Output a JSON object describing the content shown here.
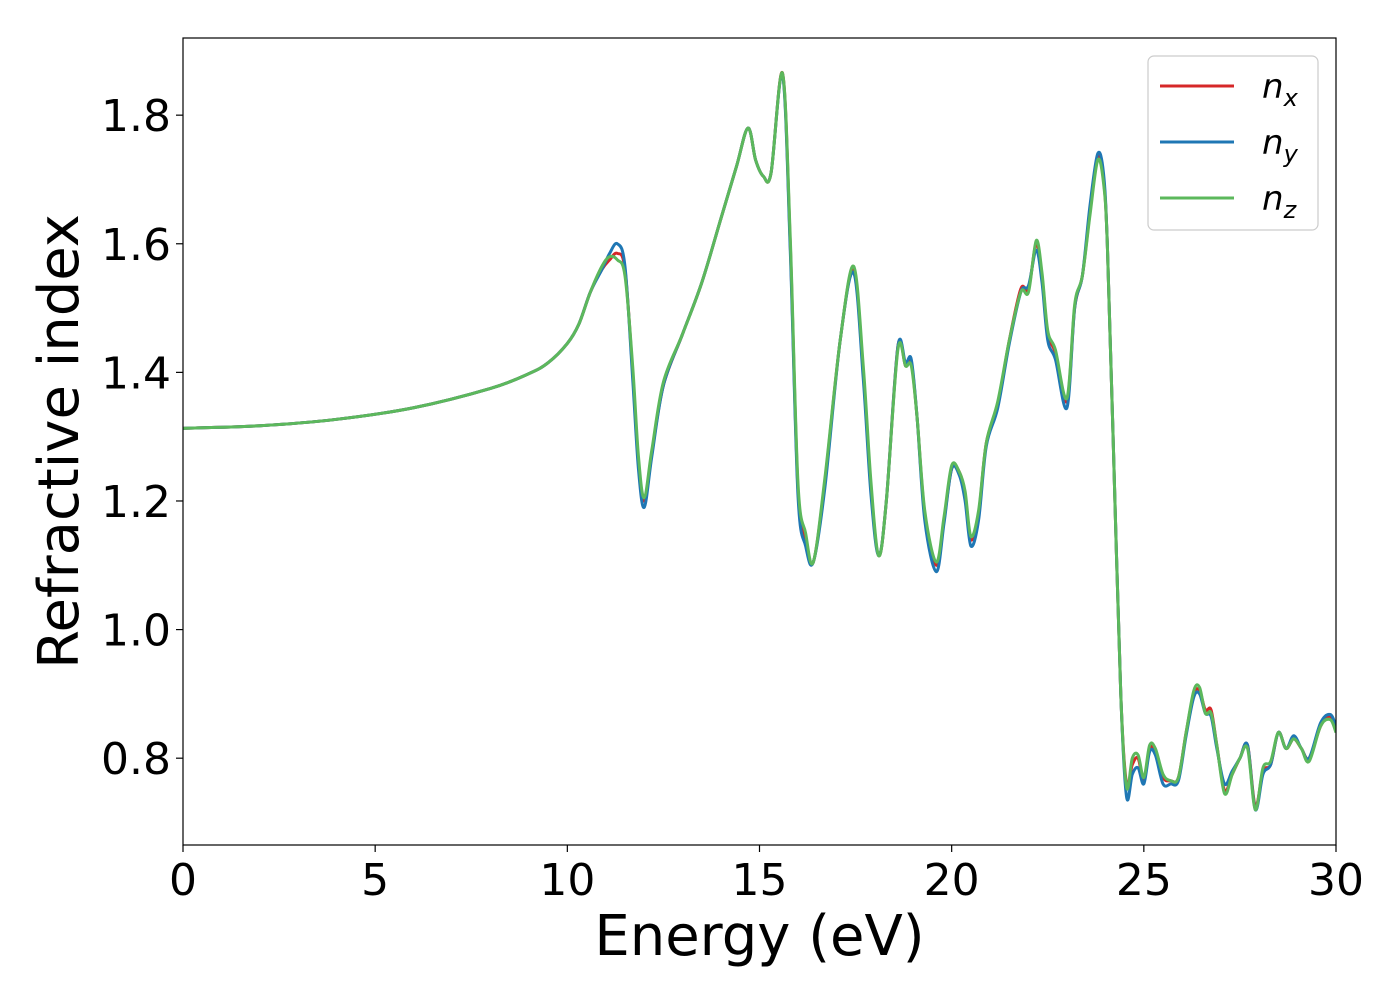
{
  "chart_data": {
    "type": "line",
    "title": "",
    "xlabel": "Energy (eV)",
    "ylabel": "Refractive index",
    "xlim": [
      0,
      30
    ],
    "ylim": [
      0.665,
      1.92
    ],
    "xticks": [
      0,
      5,
      10,
      15,
      20,
      25,
      30
    ],
    "yticks": [
      0.8,
      1.0,
      1.2,
      1.4,
      1.6,
      1.8
    ],
    "xtick_labels": [
      "0",
      "5",
      "10",
      "15",
      "20",
      "25",
      "30"
    ],
    "ytick_labels": [
      "0.8",
      "1.0",
      "1.2",
      "1.4",
      "1.6",
      "1.8"
    ],
    "grid": false,
    "legend_position": "top-right",
    "series": [
      {
        "name": "n",
        "subscript": "x",
        "color": "#d62728",
        "x": [
          0,
          2,
          4,
          6,
          8,
          9,
          9.5,
          10,
          10.3,
          10.6,
          10.9,
          11.1,
          11.3,
          11.5,
          11.7,
          11.85,
          12.0,
          12.2,
          12.5,
          13.0,
          13.5,
          14.0,
          14.4,
          14.7,
          14.9,
          15.1,
          15.3,
          15.6,
          15.8,
          16.0,
          16.2,
          16.4,
          16.7,
          17.1,
          17.45,
          17.7,
          17.9,
          18.1,
          18.3,
          18.6,
          18.8,
          18.95,
          19.1,
          19.3,
          19.6,
          19.8,
          20.0,
          20.2,
          20.35,
          20.5,
          20.7,
          20.9,
          21.2,
          21.5,
          21.8,
          22.0,
          22.2,
          22.35,
          22.5,
          22.7,
          23.0,
          23.2,
          23.4,
          23.6,
          23.8,
          23.95,
          24.05,
          24.2,
          24.4,
          24.55,
          24.7,
          24.85,
          25.0,
          25.15,
          25.3,
          25.5,
          25.7,
          25.9,
          26.1,
          26.3,
          26.45,
          26.6,
          26.75,
          26.9,
          27.1,
          27.3,
          27.5,
          27.7,
          27.9,
          28.1,
          28.3,
          28.5,
          28.7,
          28.9,
          29.1,
          29.3,
          29.6,
          29.85,
          30.0
        ],
        "y": [
          1.313,
          1.317,
          1.327,
          1.345,
          1.375,
          1.398,
          1.415,
          1.445,
          1.475,
          1.525,
          1.56,
          1.575,
          1.585,
          1.56,
          1.4,
          1.26,
          1.2,
          1.275,
          1.38,
          1.46,
          1.54,
          1.64,
          1.72,
          1.78,
          1.73,
          1.705,
          1.71,
          1.865,
          1.6,
          1.22,
          1.14,
          1.105,
          1.23,
          1.45,
          1.56,
          1.4,
          1.22,
          1.115,
          1.2,
          1.44,
          1.41,
          1.415,
          1.33,
          1.18,
          1.1,
          1.17,
          1.25,
          1.245,
          1.21,
          1.14,
          1.18,
          1.29,
          1.35,
          1.45,
          1.53,
          1.53,
          1.6,
          1.55,
          1.46,
          1.43,
          1.355,
          1.5,
          1.55,
          1.65,
          1.735,
          1.7,
          1.6,
          1.3,
          0.9,
          0.76,
          0.79,
          0.8,
          0.765,
          0.815,
          0.81,
          0.77,
          0.765,
          0.77,
          0.84,
          0.9,
          0.905,
          0.875,
          0.875,
          0.82,
          0.75,
          0.775,
          0.8,
          0.82,
          0.725,
          0.78,
          0.79,
          0.84,
          0.815,
          0.83,
          0.815,
          0.8,
          0.85,
          0.865,
          0.845
        ]
      },
      {
        "name": "n",
        "subscript": "y",
        "color": "#1f77b4",
        "x": [
          0,
          2,
          4,
          6,
          8,
          9,
          9.5,
          10,
          10.3,
          10.6,
          10.9,
          11.1,
          11.3,
          11.5,
          11.7,
          11.85,
          12.0,
          12.2,
          12.5,
          13.0,
          13.5,
          14.0,
          14.4,
          14.7,
          14.9,
          15.1,
          15.3,
          15.6,
          15.8,
          16.0,
          16.2,
          16.4,
          16.7,
          17.1,
          17.45,
          17.7,
          17.9,
          18.1,
          18.3,
          18.6,
          18.8,
          18.95,
          19.1,
          19.3,
          19.6,
          19.8,
          20.0,
          20.2,
          20.35,
          20.5,
          20.7,
          20.9,
          21.2,
          21.5,
          21.8,
          22.0,
          22.2,
          22.35,
          22.5,
          22.7,
          23.0,
          23.2,
          23.4,
          23.6,
          23.8,
          23.95,
          24.05,
          24.2,
          24.4,
          24.55,
          24.7,
          24.85,
          25.0,
          25.15,
          25.3,
          25.5,
          25.7,
          25.9,
          26.1,
          26.3,
          26.45,
          26.6,
          26.75,
          26.9,
          27.1,
          27.3,
          27.5,
          27.7,
          27.9,
          28.1,
          28.3,
          28.5,
          28.7,
          28.9,
          29.1,
          29.3,
          29.6,
          29.85,
          30.0
        ],
        "y": [
          1.313,
          1.317,
          1.327,
          1.345,
          1.375,
          1.398,
          1.415,
          1.445,
          1.475,
          1.525,
          1.56,
          1.585,
          1.6,
          1.565,
          1.39,
          1.25,
          1.19,
          1.27,
          1.38,
          1.46,
          1.54,
          1.64,
          1.72,
          1.78,
          1.73,
          1.705,
          1.71,
          1.862,
          1.59,
          1.21,
          1.13,
          1.105,
          1.22,
          1.45,
          1.555,
          1.39,
          1.21,
          1.115,
          1.2,
          1.44,
          1.415,
          1.42,
          1.33,
          1.17,
          1.09,
          1.165,
          1.25,
          1.24,
          1.2,
          1.13,
          1.17,
          1.285,
          1.345,
          1.445,
          1.525,
          1.535,
          1.59,
          1.54,
          1.45,
          1.42,
          1.345,
          1.5,
          1.55,
          1.66,
          1.74,
          1.71,
          1.6,
          1.3,
          0.9,
          0.74,
          0.775,
          0.785,
          0.76,
          0.81,
          0.805,
          0.76,
          0.76,
          0.765,
          0.835,
          0.895,
          0.9,
          0.87,
          0.865,
          0.815,
          0.76,
          0.78,
          0.8,
          0.82,
          0.72,
          0.775,
          0.79,
          0.84,
          0.815,
          0.835,
          0.815,
          0.8,
          0.855,
          0.868,
          0.85
        ]
      },
      {
        "name": "n",
        "subscript": "z",
        "color": "#5cb85c",
        "x": [
          0,
          2,
          4,
          6,
          8,
          9,
          9.5,
          10,
          10.3,
          10.6,
          10.9,
          11.1,
          11.3,
          11.5,
          11.7,
          11.85,
          12.0,
          12.2,
          12.5,
          13.0,
          13.5,
          14.0,
          14.4,
          14.7,
          14.9,
          15.1,
          15.3,
          15.6,
          15.8,
          16.0,
          16.2,
          16.4,
          16.7,
          17.1,
          17.45,
          17.7,
          17.9,
          18.1,
          18.3,
          18.6,
          18.8,
          18.95,
          19.1,
          19.3,
          19.6,
          19.8,
          20.0,
          20.2,
          20.35,
          20.5,
          20.7,
          20.9,
          21.2,
          21.5,
          21.8,
          22.0,
          22.2,
          22.35,
          22.5,
          22.7,
          23.0,
          23.2,
          23.4,
          23.6,
          23.8,
          23.95,
          24.05,
          24.2,
          24.4,
          24.55,
          24.7,
          24.85,
          25.0,
          25.15,
          25.3,
          25.5,
          25.7,
          25.9,
          26.1,
          26.3,
          26.45,
          26.6,
          26.75,
          26.9,
          27.1,
          27.3,
          27.5,
          27.7,
          27.9,
          28.1,
          28.3,
          28.5,
          28.7,
          28.9,
          29.1,
          29.3,
          29.6,
          29.85,
          30.0
        ],
        "y": [
          1.313,
          1.317,
          1.327,
          1.345,
          1.375,
          1.398,
          1.415,
          1.445,
          1.475,
          1.525,
          1.565,
          1.58,
          1.575,
          1.55,
          1.41,
          1.27,
          1.205,
          1.28,
          1.385,
          1.46,
          1.54,
          1.64,
          1.72,
          1.78,
          1.73,
          1.705,
          1.71,
          1.865,
          1.61,
          1.23,
          1.15,
          1.105,
          1.235,
          1.45,
          1.565,
          1.41,
          1.23,
          1.115,
          1.2,
          1.435,
          1.41,
          1.41,
          1.33,
          1.185,
          1.105,
          1.175,
          1.255,
          1.245,
          1.215,
          1.145,
          1.185,
          1.29,
          1.355,
          1.45,
          1.525,
          1.525,
          1.605,
          1.555,
          1.465,
          1.435,
          1.36,
          1.505,
          1.55,
          1.645,
          1.73,
          1.695,
          1.6,
          1.3,
          0.9,
          0.755,
          0.8,
          0.805,
          0.77,
          0.82,
          0.815,
          0.775,
          0.765,
          0.77,
          0.84,
          0.905,
          0.91,
          0.87,
          0.87,
          0.82,
          0.745,
          0.775,
          0.8,
          0.815,
          0.72,
          0.785,
          0.795,
          0.84,
          0.815,
          0.83,
          0.815,
          0.795,
          0.85,
          0.86,
          0.84
        ]
      }
    ]
  }
}
